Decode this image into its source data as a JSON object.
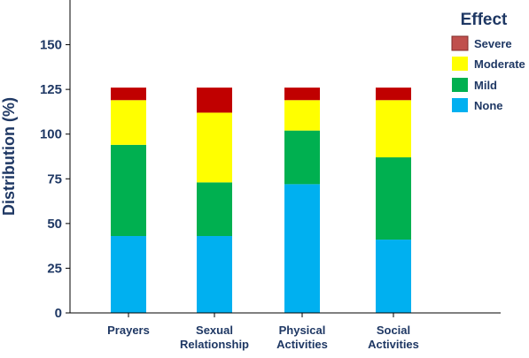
{
  "chart_data": {
    "type": "bar",
    "stacked": true,
    "title": "",
    "xlabel": "",
    "ylabel": "Distribution (%)",
    "ylim": [
      0,
      175
    ],
    "yticks": [
      0,
      25,
      50,
      75,
      100,
      125,
      150
    ],
    "grid": false,
    "legend": {
      "title": "Effect",
      "position": "top-right"
    },
    "categories": [
      [
        "Prayers"
      ],
      [
        "Sexual",
        "Relationship"
      ],
      [
        "Physical",
        "Activities"
      ],
      [
        "Social",
        "Activities"
      ]
    ],
    "series": [
      {
        "name": "None",
        "color": "#00B0F0",
        "values": [
          43,
          43,
          72,
          41
        ]
      },
      {
        "name": "Mild",
        "color": "#00B050",
        "values": [
          51,
          30,
          30,
          46
        ]
      },
      {
        "name": "Moderate",
        "color": "#FFFF00",
        "values": [
          25,
          39,
          17,
          32
        ]
      },
      {
        "name": "Severe",
        "color": "#C00000",
        "values": [
          7,
          14,
          7,
          7
        ]
      }
    ],
    "legend_order": [
      "Severe",
      "Moderate",
      "Mild",
      "None"
    ],
    "legend_swatch_colors": {
      "Severe": "#C0504D"
    },
    "text_color": "#1F3864"
  }
}
